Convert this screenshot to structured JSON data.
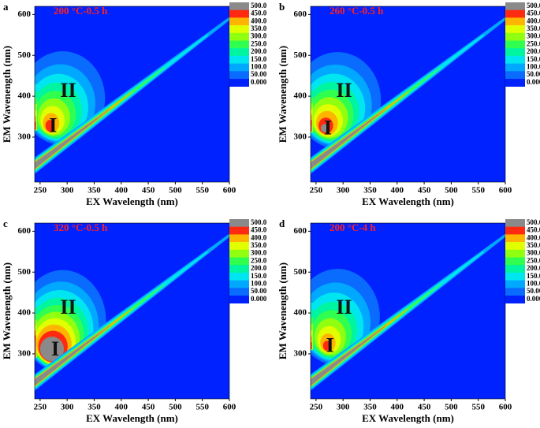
{
  "chart_data": [
    {
      "type": "contour",
      "panel": "a",
      "title": "200 °C-0.5 h",
      "xlabel": "EX Wavelength (nm)",
      "ylabel": "EM Wavenength (nm)",
      "xlim": [
        240,
        600
      ],
      "ylim": [
        190,
        620
      ],
      "xticks": [
        250,
        300,
        350,
        400,
        450,
        500,
        550,
        600
      ],
      "yticks": [
        300,
        400,
        500,
        600
      ],
      "annotations": [
        "I",
        "II"
      ],
      "levels": [
        {
          "value": 0,
          "label": "0.000"
        },
        {
          "value": 50,
          "label": "50.00"
        },
        {
          "value": 100,
          "label": "100.0"
        },
        {
          "value": 150,
          "label": "150.0"
        },
        {
          "value": 200,
          "label": "200.0"
        },
        {
          "value": 250,
          "label": "250.0"
        },
        {
          "value": 300,
          "label": "300.0"
        },
        {
          "value": 350,
          "label": "350.0"
        },
        {
          "value": 400,
          "label": "400.0"
        },
        {
          "value": 450,
          "label": "450.0"
        },
        {
          "value": 500,
          "label": "500.0"
        }
      ],
      "level_colors": [
        "#0022ff",
        "#0a6cff",
        "#00a8ff",
        "#00e6f0",
        "#00f5a0",
        "#30ff50",
        "#90ff10",
        "#e0ff00",
        "#ffb400",
        "#ff2a10",
        "#8a8a8a"
      ]
    },
    {
      "type": "contour",
      "panel": "b",
      "title": "260 °C-0.5 h",
      "xlabel": "EX Wavelength (nm)",
      "ylabel": "EM Wavenength (nm)",
      "xlim": [
        240,
        600
      ],
      "ylim": [
        190,
        620
      ],
      "xticks": [
        250,
        300,
        350,
        400,
        450,
        500,
        550,
        600
      ],
      "yticks": [
        300,
        400,
        500,
        600
      ],
      "annotations": [
        "I",
        "II"
      ],
      "levels": [
        {
          "value": 0,
          "label": "0.000"
        },
        {
          "value": 50,
          "label": "50.00"
        },
        {
          "value": 100,
          "label": "100.0"
        },
        {
          "value": 150,
          "label": "150.0"
        },
        {
          "value": 200,
          "label": "200.0"
        },
        {
          "value": 250,
          "label": "250.0"
        },
        {
          "value": 300,
          "label": "300.0"
        },
        {
          "value": 350,
          "label": "350.0"
        },
        {
          "value": 400,
          "label": "400.0"
        },
        {
          "value": 450,
          "label": "450.0"
        },
        {
          "value": 500,
          "label": "500.0"
        }
      ],
      "level_colors": [
        "#0022ff",
        "#0a6cff",
        "#00a8ff",
        "#00e6f0",
        "#00f5a0",
        "#30ff50",
        "#90ff10",
        "#e0ff00",
        "#ffb400",
        "#ff2a10",
        "#8a8a8a"
      ]
    },
    {
      "type": "contour",
      "panel": "c",
      "title": "320 °C-0.5 h",
      "xlabel": "EX Wavelength (nm)",
      "ylabel": "EM Wavenength (nm)",
      "xlim": [
        240,
        600
      ],
      "ylim": [
        190,
        620
      ],
      "xticks": [
        250,
        300,
        350,
        400,
        450,
        500,
        550,
        600
      ],
      "yticks": [
        300,
        400,
        500,
        600
      ],
      "annotations": [
        "I",
        "II"
      ],
      "levels": [
        {
          "value": 0,
          "label": "0.000"
        },
        {
          "value": 50,
          "label": "50.00"
        },
        {
          "value": 100,
          "label": "100.0"
        },
        {
          "value": 150,
          "label": "150.0"
        },
        {
          "value": 200,
          "label": "200.0"
        },
        {
          "value": 250,
          "label": "250.0"
        },
        {
          "value": 300,
          "label": "300.0"
        },
        {
          "value": 350,
          "label": "350.0"
        },
        {
          "value": 400,
          "label": "400.0"
        },
        {
          "value": 450,
          "label": "450.0"
        },
        {
          "value": 500,
          "label": "500.0"
        }
      ],
      "level_colors": [
        "#0022ff",
        "#0a6cff",
        "#00a8ff",
        "#00e6f0",
        "#00f5a0",
        "#30ff50",
        "#90ff10",
        "#e0ff00",
        "#ffb400",
        "#ff2a10",
        "#8a8a8a"
      ]
    },
    {
      "type": "contour",
      "panel": "d",
      "title": "200 °C-4 h",
      "xlabel": "EX Wavelength (nm)",
      "ylabel": "EM Wavenength (nm)",
      "xlim": [
        240,
        600
      ],
      "ylim": [
        190,
        620
      ],
      "xticks": [
        250,
        300,
        350,
        400,
        450,
        500,
        550,
        600
      ],
      "yticks": [
        300,
        400,
        500,
        600
      ],
      "annotations": [
        "I",
        "II"
      ],
      "levels": [
        {
          "value": 0,
          "label": "0.000"
        },
        {
          "value": 50,
          "label": "50.00"
        },
        {
          "value": 100,
          "label": "100.0"
        },
        {
          "value": 150,
          "label": "150.0"
        },
        {
          "value": 200,
          "label": "200.0"
        },
        {
          "value": 250,
          "label": "250.0"
        },
        {
          "value": 300,
          "label": "300.0"
        },
        {
          "value": 350,
          "label": "350.0"
        },
        {
          "value": 400,
          "label": "400.0"
        },
        {
          "value": 450,
          "label": "450.0"
        },
        {
          "value": 500,
          "label": "500.0"
        }
      ],
      "level_colors": [
        "#0022ff",
        "#0a6cff",
        "#00a8ff",
        "#00e6f0",
        "#00f5a0",
        "#30ff50",
        "#90ff10",
        "#e0ff00",
        "#ffb400",
        "#ff2a10",
        "#8a8a8a"
      ]
    }
  ]
}
